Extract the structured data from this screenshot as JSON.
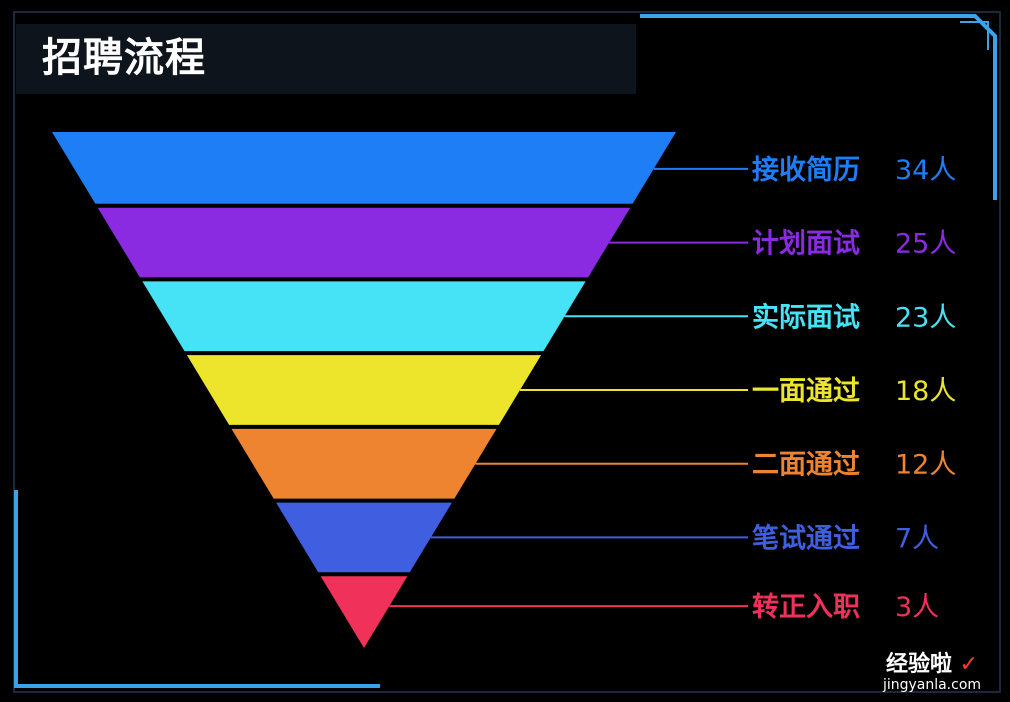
{
  "title": "招聘流程",
  "chart_data": {
    "type": "funnel",
    "title": "招聘流程",
    "unit": "人",
    "stages": [
      {
        "label": "接收简历",
        "value": 34,
        "value_text": "34人",
        "color": "#1e7ef5"
      },
      {
        "label": "计划面试",
        "value": 25,
        "value_text": "25人",
        "color": "#8a2be2"
      },
      {
        "label": "实际面试",
        "value": 23,
        "value_text": "23人",
        "color": "#45e3f5"
      },
      {
        "label": "一面通过",
        "value": 18,
        "value_text": "18人",
        "color": "#ece52b"
      },
      {
        "label": "二面通过",
        "value": 12,
        "value_text": "12人",
        "color": "#ee8430"
      },
      {
        "label": "笔试通过",
        "value": 7,
        "value_text": "7人",
        "color": "#3f5fe0"
      },
      {
        "label": "转正入职",
        "value": 3,
        "value_text": "3人",
        "color": "#f0325a"
      }
    ]
  },
  "frame": {
    "accent_color": "#3ba3e8"
  },
  "watermark": {
    "text": "经验啦",
    "check": "✓",
    "url": "jingyanla.com"
  }
}
